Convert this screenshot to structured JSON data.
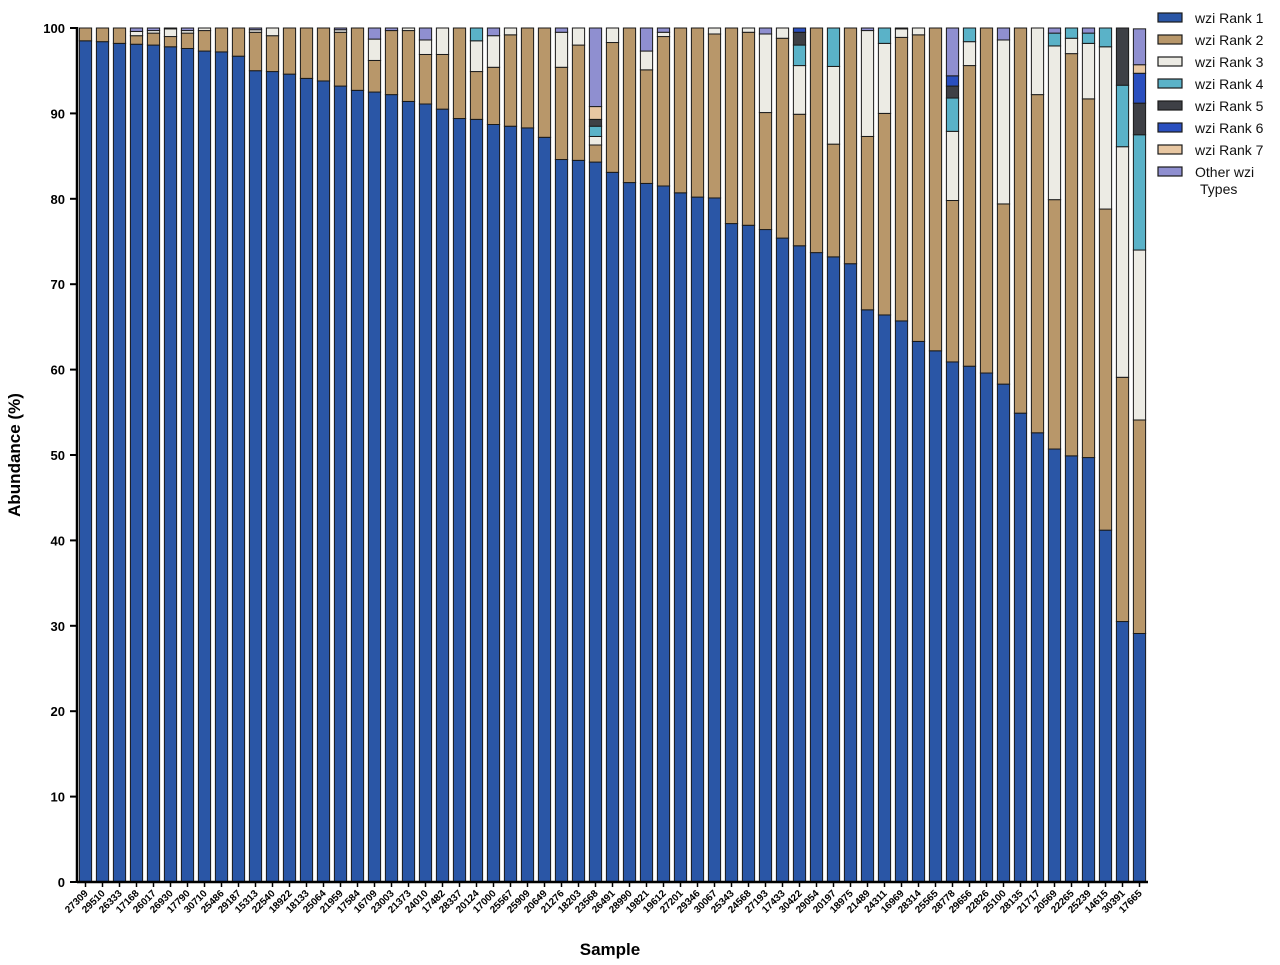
{
  "chart_data": {
    "type": "bar",
    "stacked": true,
    "title": "",
    "xlabel": "Sample",
    "ylabel": "Abundance (%)",
    "ylim": [
      0,
      100
    ],
    "yticks": [
      0,
      10,
      20,
      30,
      40,
      50,
      60,
      70,
      80,
      90,
      100
    ],
    "grid": false,
    "legend_position": "right",
    "categories": [
      "27309",
      "29510",
      "26333",
      "17168",
      "26017",
      "26930",
      "17790",
      "30710",
      "25486",
      "29187",
      "15313",
      "22540",
      "18922",
      "18133",
      "25064",
      "21959",
      "17584",
      "16709",
      "23003",
      "21373",
      "24010",
      "17482",
      "28337",
      "20124",
      "17000",
      "25567",
      "25909",
      "20649",
      "21276",
      "18203",
      "23568",
      "26491",
      "28990",
      "19821",
      "19612",
      "27201",
      "29346",
      "30067",
      "25343",
      "24568",
      "27193",
      "17433",
      "30422",
      "29054",
      "20197",
      "18975",
      "21489",
      "24311",
      "16969",
      "28314",
      "25565",
      "28778",
      "29656",
      "22826",
      "25100",
      "28135",
      "21717",
      "20569",
      "22265",
      "25239",
      "14615",
      "30391",
      "17665"
    ],
    "series": [
      {
        "name": "wzi Rank 1",
        "color": "#2a56a6",
        "values": [
          98.5,
          98.4,
          98.2,
          98.1,
          98.0,
          97.8,
          97.6,
          97.3,
          97.2,
          96.7,
          95.0,
          94.9,
          94.6,
          94.1,
          93.8,
          93.2,
          92.7,
          92.5,
          92.2,
          91.4,
          91.1,
          90.5,
          89.4,
          89.3,
          88.7,
          88.5,
          88.3,
          87.2,
          84.6,
          84.5,
          84.3,
          83.1,
          81.9,
          81.8,
          81.5,
          80.7,
          80.2,
          80.1,
          77.1,
          76.9,
          76.4,
          75.4,
          74.5,
          73.7,
          73.2,
          72.4,
          67.0,
          66.4,
          65.7,
          63.3,
          62.2,
          60.9,
          60.4,
          59.6,
          58.3,
          54.9,
          52.6,
          50.7,
          49.9,
          49.7,
          41.2,
          30.5,
          29.1
        ]
      },
      {
        "name": "wzi Rank 2",
        "color": "#b8976a",
        "values": [
          1.5,
          1.6,
          1.8,
          1.0,
          1.4,
          1.2,
          1.8,
          2.4,
          2.8,
          3.3,
          4.5,
          4.2,
          5.4,
          5.9,
          6.2,
          6.3,
          7.3,
          3.7,
          7.5,
          8.3,
          5.8,
          6.4,
          10.6,
          5.6,
          6.7,
          10.7,
          11.7,
          12.8,
          10.8,
          13.5,
          2.0,
          15.2,
          18.1,
          13.3,
          17.5,
          19.3,
          19.8,
          19.2,
          22.9,
          22.6,
          13.7,
          23.4,
          15.4,
          26.3,
          13.2,
          27.6,
          20.3,
          23.6,
          33.2,
          35.9,
          37.8,
          18.9,
          35.2,
          40.4,
          21.1,
          45.1,
          39.6,
          29.2,
          47.1,
          42.0,
          37.6,
          28.6,
          25.0
        ]
      },
      {
        "name": "wzi Rank 3",
        "color": "#ecebe4",
        "values": [
          0,
          0,
          0,
          0.5,
          0.3,
          0.9,
          0.3,
          0.3,
          0,
          0,
          0.3,
          0.9,
          0,
          0,
          0,
          0.3,
          0,
          2.5,
          0,
          0.3,
          1.7,
          3.1,
          0,
          3.6,
          3.7,
          0.8,
          0,
          0,
          4.1,
          2.0,
          1.0,
          1.7,
          0,
          2.2,
          0.5,
          0,
          0,
          0.7,
          0,
          0.5,
          9.2,
          1.2,
          5.7,
          0,
          9.1,
          0,
          12.4,
          8.2,
          1.0,
          0.8,
          0,
          8.1,
          2.8,
          0,
          19.2,
          0,
          7.8,
          18.0,
          1.8,
          6.5,
          19.0,
          27.0,
          19.9
        ]
      },
      {
        "name": "wzi Rank 4",
        "color": "#5ab2c8",
        "values": [
          0,
          0,
          0,
          0,
          0,
          0,
          0,
          0,
          0,
          0,
          0,
          0,
          0,
          0,
          0,
          0,
          0,
          0,
          0,
          0,
          0,
          0,
          0,
          1.5,
          0,
          0,
          0,
          0,
          0,
          0,
          1.2,
          0,
          0,
          0,
          0,
          0,
          0,
          0,
          0,
          0,
          0,
          0,
          2.4,
          0,
          4.5,
          0,
          0,
          1.8,
          0,
          0,
          0,
          3.9,
          1.6,
          0,
          0,
          0,
          0,
          1.5,
          1.2,
          1.2,
          2.2,
          7.2,
          13.5
        ]
      },
      {
        "name": "wzi Rank 5",
        "color": "#3e4046",
        "values": [
          0,
          0,
          0,
          0,
          0,
          0,
          0,
          0,
          0,
          0,
          0,
          0,
          0,
          0,
          0,
          0,
          0,
          0,
          0,
          0,
          0,
          0,
          0,
          0,
          0,
          0,
          0,
          0,
          0,
          0,
          0.8,
          0,
          0,
          0,
          0,
          0,
          0,
          0,
          0,
          0,
          0,
          0,
          1.5,
          0,
          0,
          0,
          0,
          0,
          0,
          0,
          0,
          1.4,
          0,
          0,
          0,
          0,
          0,
          0,
          0,
          0,
          0,
          6.7,
          3.7
        ]
      },
      {
        "name": "wzi Rank 6",
        "color": "#2a4fbf",
        "values": [
          0,
          0,
          0,
          0,
          0,
          0,
          0,
          0,
          0,
          0,
          0,
          0,
          0,
          0,
          0,
          0,
          0,
          0,
          0,
          0,
          0,
          0,
          0,
          0,
          0,
          0,
          0,
          0,
          0,
          0,
          0,
          0,
          0,
          0,
          0,
          0,
          0,
          0,
          0,
          0,
          0,
          0,
          0.5,
          0,
          0,
          0,
          0,
          0,
          0,
          0,
          0,
          1.2,
          0,
          0,
          0,
          0,
          0,
          0,
          0,
          0,
          0,
          0,
          3.5
        ]
      },
      {
        "name": "wzi Rank 7",
        "color": "#e8c7a2",
        "values": [
          0,
          0,
          0,
          0,
          0,
          0,
          0,
          0,
          0,
          0,
          0,
          0,
          0,
          0,
          0,
          0,
          0,
          0,
          0,
          0,
          0,
          0,
          0,
          0,
          0,
          0,
          0,
          0,
          0,
          0,
          1.5,
          0,
          0,
          0,
          0,
          0,
          0,
          0,
          0,
          0,
          0,
          0,
          0,
          0,
          0,
          0,
          0,
          0,
          0,
          0,
          0,
          0,
          0,
          0,
          0,
          0,
          0,
          0,
          0,
          0,
          0,
          0,
          1.0
        ]
      },
      {
        "name": "Other wzi Types",
        "color": "#8f8fd0",
        "values": [
          0,
          0,
          0,
          0.4,
          0.3,
          0.1,
          0.3,
          0,
          0,
          0,
          0.2,
          0,
          0,
          0,
          0,
          0.2,
          0,
          1.3,
          0.3,
          0,
          1.4,
          0,
          0,
          0,
          0.9,
          0,
          0,
          0,
          0.5,
          0,
          9.2,
          0,
          0,
          2.7,
          0.5,
          0,
          0,
          0,
          0,
          0,
          0.7,
          0,
          0,
          0,
          0,
          0,
          0.3,
          0,
          0.1,
          0,
          0,
          5.6,
          0,
          0,
          1.4,
          0,
          0,
          0.6,
          0,
          0.6,
          0,
          0,
          4.2
        ]
      }
    ]
  }
}
